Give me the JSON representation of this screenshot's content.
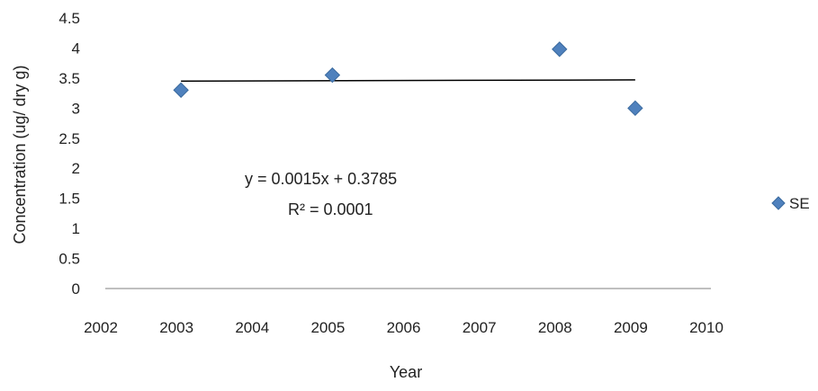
{
  "chart_data": {
    "type": "scatter",
    "title": "",
    "xlabel": "Year",
    "ylabel": "Concentration (ug/ dry g)",
    "xlim": [
      2002,
      2010
    ],
    "ylim": [
      0,
      4.5
    ],
    "x_ticks": [
      "2002",
      "2003",
      "2004",
      "2005",
      "2006",
      "2007",
      "2008",
      "2009",
      "2010"
    ],
    "y_ticks": [
      "0",
      "0.5",
      "1",
      "1.5",
      "2",
      "2.5",
      "3",
      "3.5",
      "4",
      "4.5"
    ],
    "grid": false,
    "legend_position": "right",
    "series": [
      {
        "name": "SE",
        "color": "#4f81bd",
        "marker": "diamond",
        "x": [
          2003,
          2005,
          2008,
          2009
        ],
        "y": [
          3.3,
          3.55,
          3.98,
          3.0
        ]
      }
    ],
    "trendline": {
      "x": [
        2003,
        2009
      ],
      "y": [
        3.45,
        3.47
      ],
      "color": "#000000",
      "equation": "y = 0.0015x + 0.3785",
      "r_squared": "R² = 0.0001"
    }
  }
}
